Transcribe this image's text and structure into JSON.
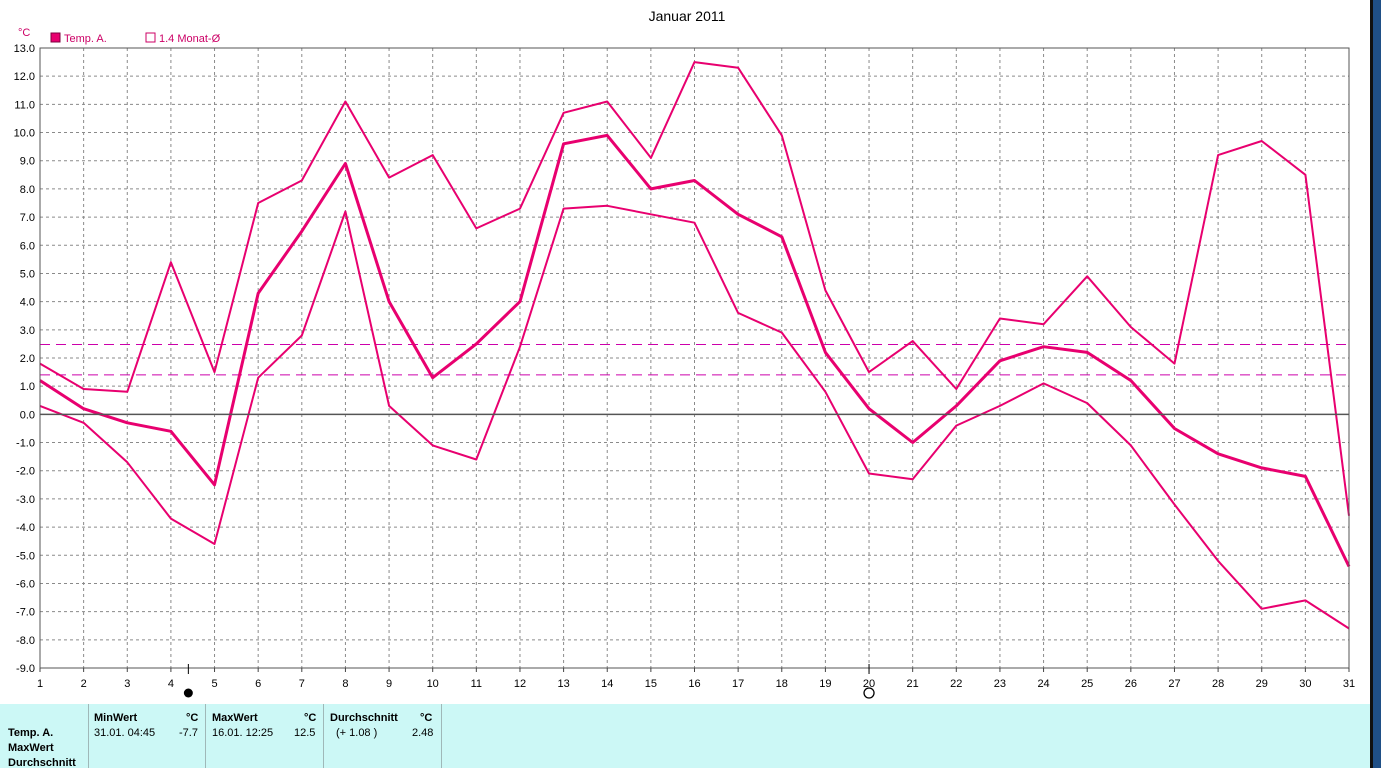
{
  "chart_data": {
    "type": "line",
    "title": "Januar 2011",
    "unit": "°C",
    "x": [
      1,
      2,
      3,
      4,
      5,
      6,
      7,
      8,
      9,
      10,
      11,
      12,
      13,
      14,
      15,
      16,
      17,
      18,
      19,
      20,
      21,
      22,
      23,
      24,
      25,
      26,
      27,
      28,
      29,
      30,
      31
    ],
    "ylim": [
      -9,
      13
    ],
    "yticks": [
      "13.0",
      "12.0",
      "11.0",
      "10.0",
      "9.0",
      "8.0",
      "7.0",
      "6.0",
      "5.0",
      "4.0",
      "3.0",
      "2.0",
      "1.0",
      "0.0",
      "-1.0",
      "-2.0",
      "-3.0",
      "-4.0",
      "-5.0",
      "-6.0",
      "-7.0",
      "-8.0",
      "-9.0"
    ],
    "grid": true,
    "legend": [
      {
        "label": "Temp. A.",
        "filled": true
      },
      {
        "label": "1.4 Monat-Ø",
        "filled": false
      }
    ],
    "series": [
      {
        "name": "Temp. A.",
        "role": "mean",
        "values": [
          1.2,
          0.2,
          -0.3,
          -0.6,
          -2.5,
          4.3,
          6.5,
          8.9,
          4.0,
          1.3,
          2.5,
          4.0,
          9.6,
          9.9,
          8.0,
          8.3,
          7.1,
          6.3,
          2.2,
          0.2,
          -1.0,
          0.3,
          1.9,
          2.4,
          2.2,
          1.2,
          -0.5,
          -1.4,
          -1.9,
          -2.2,
          -5.4
        ]
      },
      {
        "role": "max",
        "values": [
          1.8,
          0.9,
          0.8,
          5.4,
          1.5,
          7.5,
          8.3,
          11.1,
          8.4,
          9.2,
          6.6,
          7.3,
          10.7,
          11.1,
          9.1,
          12.5,
          12.3,
          9.9,
          4.4,
          1.5,
          2.6,
          0.9,
          3.4,
          3.2,
          4.9,
          3.1,
          1.8,
          9.2,
          9.7,
          8.5,
          -3.6
        ]
      },
      {
        "role": "min",
        "values": [
          0.3,
          -0.3,
          -1.7,
          -3.7,
          -4.6,
          1.3,
          2.8,
          7.2,
          0.3,
          -1.1,
          -1.6,
          2.4,
          7.3,
          7.4,
          7.1,
          6.8,
          3.6,
          2.9,
          0.8,
          -2.1,
          -2.3,
          -0.4,
          0.3,
          1.1,
          0.4,
          -1.1,
          -3.2,
          -5.2,
          -6.9,
          -6.6,
          -7.6
        ]
      }
    ],
    "reference_lines": [
      2.48,
      1.4
    ],
    "moon_phases": [
      {
        "x": 4.4,
        "phase": "new"
      },
      {
        "x": 20,
        "phase": "full"
      }
    ],
    "colors": {
      "series": "#e8006f",
      "grid": "#8a8a8a",
      "zero_line": "#555555",
      "axis_text": "#000000",
      "unit_text": "#cc0066"
    }
  },
  "footer": {
    "row_labels": [
      "Temp. A.",
      "MaxWert",
      "Durchschnitt"
    ],
    "min": {
      "header": "MinWert",
      "unit": "°C",
      "time": "31.01.  04:45",
      "value": "-7.7"
    },
    "max": {
      "header": "MaxWert",
      "unit": "°C",
      "time": "16.01.  12:25",
      "value": "12.5"
    },
    "avg": {
      "header": "Durchschnitt",
      "unit": "°C",
      "delta": "(+ 1.08 )",
      "value": "2.48"
    },
    "background": "#ccf8f6"
  }
}
